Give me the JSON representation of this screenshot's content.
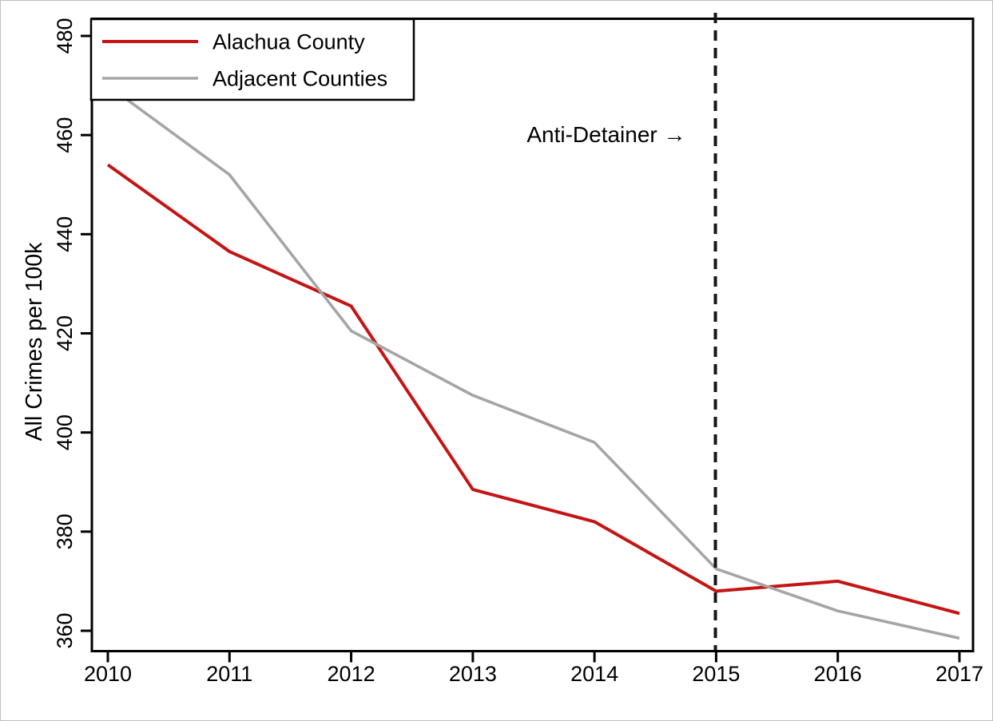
{
  "chart_data": {
    "type": "line",
    "title": "",
    "xlabel": "",
    "ylabel": "All Crimes per 100k",
    "x": [
      2010,
      2011,
      2012,
      2013,
      2014,
      2015,
      2016,
      2017
    ],
    "xticks": [
      2010,
      2011,
      2012,
      2013,
      2014,
      2015,
      2016,
      2017
    ],
    "yticks": [
      360,
      380,
      400,
      420,
      440,
      460,
      480
    ],
    "ylim": [
      356,
      483.5
    ],
    "xlim": [
      2009.87,
      2017.11
    ],
    "grid": false,
    "background": "#ffffff",
    "axis_color": "#000000",
    "series": [
      {
        "name": "Alachua County",
        "color": "#c41414",
        "values": [
          454,
          436.5,
          425.5,
          388.5,
          382,
          368,
          370,
          363.5
        ]
      },
      {
        "name": "Adjacent Counties",
        "color": "#a5a5a5",
        "values": [
          470,
          452,
          420.5,
          407.5,
          398,
          372.5,
          364,
          358.5
        ]
      }
    ],
    "legend": {
      "position": "top-left",
      "entries": [
        "Alachua County",
        "Adjacent Counties"
      ]
    },
    "vline": {
      "year": 2015,
      "style": "dashed",
      "color": "#161616"
    },
    "annotation": {
      "text": "Anti-Detainer →",
      "at_year": 2015,
      "value": 460,
      "align": "right-of-text-points-to-line"
    }
  }
}
